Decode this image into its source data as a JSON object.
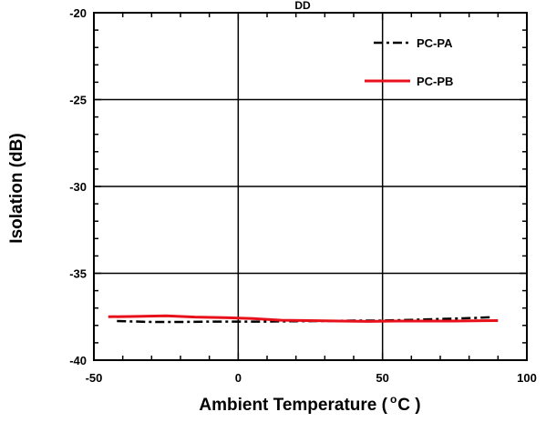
{
  "chart_data": {
    "type": "line",
    "title_fragment": "DD",
    "xlabel_main": "Ambient Temperature (",
    "xlabel_degree": "o",
    "xlabel_unit": "C )",
    "ylabel": "Isolation (dB)",
    "xlim": [
      -50,
      100
    ],
    "ylim": [
      -40,
      -20
    ],
    "x_ticks": [
      -50,
      0,
      50,
      100
    ],
    "x_tick_labels": [
      "-50",
      "0",
      "50",
      "100"
    ],
    "y_ticks": [
      -20,
      -25,
      -30,
      -35,
      -40
    ],
    "y_tick_labels": [
      "-20",
      "-25",
      "-30",
      "-35",
      "-40"
    ],
    "grid": true,
    "legend_position": "top-right",
    "series": [
      {
        "name": "PC-PA",
        "color": "#000000",
        "dash": "dashdot",
        "x": [
          -42,
          -30,
          -20,
          -10,
          0,
          10,
          20,
          30,
          40,
          50,
          60,
          70,
          80,
          88
        ],
        "y": [
          -37.75,
          -37.8,
          -37.8,
          -37.78,
          -37.78,
          -37.78,
          -37.76,
          -37.75,
          -37.72,
          -37.72,
          -37.68,
          -37.63,
          -37.58,
          -37.53
        ]
      },
      {
        "name": "PC-PB",
        "color": "#e8101a",
        "dash": "solid",
        "x": [
          -45,
          -35,
          -25,
          -15,
          -5,
          5,
          15,
          25,
          35,
          45,
          55,
          65,
          75,
          85,
          90
        ],
        "y": [
          -37.5,
          -37.48,
          -37.45,
          -37.52,
          -37.55,
          -37.6,
          -37.7,
          -37.72,
          -37.75,
          -37.77,
          -37.75,
          -37.75,
          -37.75,
          -37.73,
          -37.72
        ]
      }
    ]
  }
}
